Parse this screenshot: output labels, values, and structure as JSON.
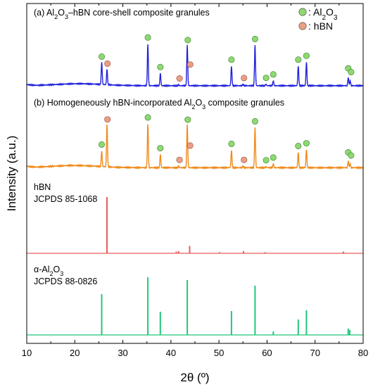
{
  "chart_data": {
    "type": "line",
    "xlabel": "2θ (º)",
    "ylabel": "Intensity (a.u.)",
    "xlim": [
      10,
      80
    ],
    "xticks": [
      10,
      20,
      30,
      40,
      50,
      60,
      70,
      80
    ],
    "legend": {
      "placement": "top-right",
      "entries": [
        {
          "marker_color": "#8ed972",
          "text": ": Al",
          "sub1": "2",
          "mid": "O",
          "sub2": "3"
        },
        {
          "marker_color": "#ec9e84",
          "text": ": hBN"
        }
      ]
    },
    "panels": [
      {
        "id": "a",
        "label_parts": [
          "(a) Al",
          "2",
          "O",
          "3",
          "–hBN core-shell composite granules"
        ],
        "color": "#2222dd",
        "kind": "xrd",
        "base": 0.06,
        "hump": {
          "center": 21,
          "width": 7,
          "height": 0.04
        },
        "peaks": [
          {
            "x": 25.6,
            "h": 0.45
          },
          {
            "x": 26.7,
            "h": 0.32
          },
          {
            "x": 35.2,
            "h": 0.85
          },
          {
            "x": 37.8,
            "h": 0.25
          },
          {
            "x": 41.6,
            "h": 0.02
          },
          {
            "x": 43.4,
            "h": 0.82
          },
          {
            "x": 52.6,
            "h": 0.4
          },
          {
            "x": 55.0,
            "h": 0.03
          },
          {
            "x": 57.5,
            "h": 0.82
          },
          {
            "x": 59.8,
            "h": 0.03
          },
          {
            "x": 61.3,
            "h": 0.1
          },
          {
            "x": 66.5,
            "h": 0.4
          },
          {
            "x": 68.2,
            "h": 0.48
          },
          {
            "x": 76.9,
            "h": 0.16
          },
          {
            "x": 77.3,
            "h": 0.1
          }
        ],
        "markers": [
          {
            "x": 25.6,
            "phase": "Al2O3"
          },
          {
            "x": 26.8,
            "phase": "hBN"
          },
          {
            "x": 35.2,
            "phase": "Al2O3"
          },
          {
            "x": 37.8,
            "phase": "Al2O3"
          },
          {
            "x": 41.8,
            "phase": "hBN"
          },
          {
            "x": 43.5,
            "phase": "Al2O3"
          },
          {
            "x": 44.0,
            "phase": "hBN"
          },
          {
            "x": 52.6,
            "phase": "Al2O3"
          },
          {
            "x": 55.2,
            "phase": "hBN"
          },
          {
            "x": 57.5,
            "phase": "Al2O3"
          },
          {
            "x": 59.8,
            "phase": "Al2O3"
          },
          {
            "x": 61.3,
            "phase": "Al2O3"
          },
          {
            "x": 66.5,
            "phase": "Al2O3"
          },
          {
            "x": 68.2,
            "phase": "Al2O3"
          },
          {
            "x": 76.9,
            "phase": "Al2O3"
          },
          {
            "x": 77.5,
            "phase": "Al2O3"
          }
        ]
      },
      {
        "id": "b",
        "label_parts": [
          "(b) Homogeneously hBN-incorporated Al",
          "2",
          "O",
          "3",
          " composite granules"
        ],
        "color": "#f08a1c",
        "kind": "xrd",
        "base": 0.06,
        "hump": {
          "center": 20,
          "width": 7,
          "height": 0.04
        },
        "peaks": [
          {
            "x": 25.6,
            "h": 0.28
          },
          {
            "x": 26.7,
            "h": 0.78
          },
          {
            "x": 35.2,
            "h": 0.8
          },
          {
            "x": 37.8,
            "h": 0.24
          },
          {
            "x": 41.6,
            "h": 0.03
          },
          {
            "x": 43.4,
            "h": 0.78
          },
          {
            "x": 52.6,
            "h": 0.32
          },
          {
            "x": 55.0,
            "h": 0.03
          },
          {
            "x": 57.5,
            "h": 0.73
          },
          {
            "x": 59.8,
            "h": 0.02
          },
          {
            "x": 61.3,
            "h": 0.07
          },
          {
            "x": 66.5,
            "h": 0.28
          },
          {
            "x": 68.2,
            "h": 0.33
          },
          {
            "x": 76.9,
            "h": 0.12
          },
          {
            "x": 77.3,
            "h": 0.07
          }
        ],
        "markers": [
          {
            "x": 25.6,
            "phase": "Al2O3"
          },
          {
            "x": 26.8,
            "phase": "hBN"
          },
          {
            "x": 35.2,
            "phase": "Al2O3"
          },
          {
            "x": 37.8,
            "phase": "Al2O3"
          },
          {
            "x": 41.8,
            "phase": "hBN"
          },
          {
            "x": 43.5,
            "phase": "Al2O3"
          },
          {
            "x": 44.0,
            "phase": "hBN"
          },
          {
            "x": 52.6,
            "phase": "Al2O3"
          },
          {
            "x": 55.2,
            "phase": "hBN"
          },
          {
            "x": 57.5,
            "phase": "Al2O3"
          },
          {
            "x": 59.8,
            "phase": "Al2O3"
          },
          {
            "x": 61.3,
            "phase": "Al2O3"
          },
          {
            "x": 66.5,
            "phase": "Al2O3"
          },
          {
            "x": 68.2,
            "phase": "Al2O3"
          },
          {
            "x": 76.9,
            "phase": "Al2O3"
          },
          {
            "x": 77.5,
            "phase": "Al2O3"
          }
        ]
      },
      {
        "id": "hbn",
        "label_lines": [
          "hBN",
          "JCPDS 85-1068"
        ],
        "color": "#e85c5c",
        "kind": "stick",
        "sticks": [
          {
            "x": 26.7,
            "h": 1.0
          },
          {
            "x": 41.1,
            "h": 0.03
          },
          {
            "x": 41.6,
            "h": 0.04
          },
          {
            "x": 43.9,
            "h": 0.13
          },
          {
            "x": 50.1,
            "h": 0.02
          },
          {
            "x": 55.1,
            "h": 0.04
          },
          {
            "x": 59.6,
            "h": 0.02
          },
          {
            "x": 75.9,
            "h": 0.03
          }
        ]
      },
      {
        "id": "al2o3",
        "label_lines_parts": [
          [
            "α-Al",
            "2",
            "O",
            "3",
            ""
          ],
          [
            "JCPDS 88-0826"
          ]
        ],
        "color": "#22c77a",
        "kind": "stick",
        "sticks": [
          {
            "x": 25.6,
            "h": 0.58
          },
          {
            "x": 35.2,
            "h": 0.82
          },
          {
            "x": 37.8,
            "h": 0.33
          },
          {
            "x": 43.4,
            "h": 0.78
          },
          {
            "x": 52.6,
            "h": 0.34
          },
          {
            "x": 57.5,
            "h": 0.7
          },
          {
            "x": 61.3,
            "h": 0.05
          },
          {
            "x": 66.5,
            "h": 0.22
          },
          {
            "x": 68.2,
            "h": 0.35
          },
          {
            "x": 76.9,
            "h": 0.09
          },
          {
            "x": 77.2,
            "h": 0.07
          }
        ]
      }
    ]
  }
}
